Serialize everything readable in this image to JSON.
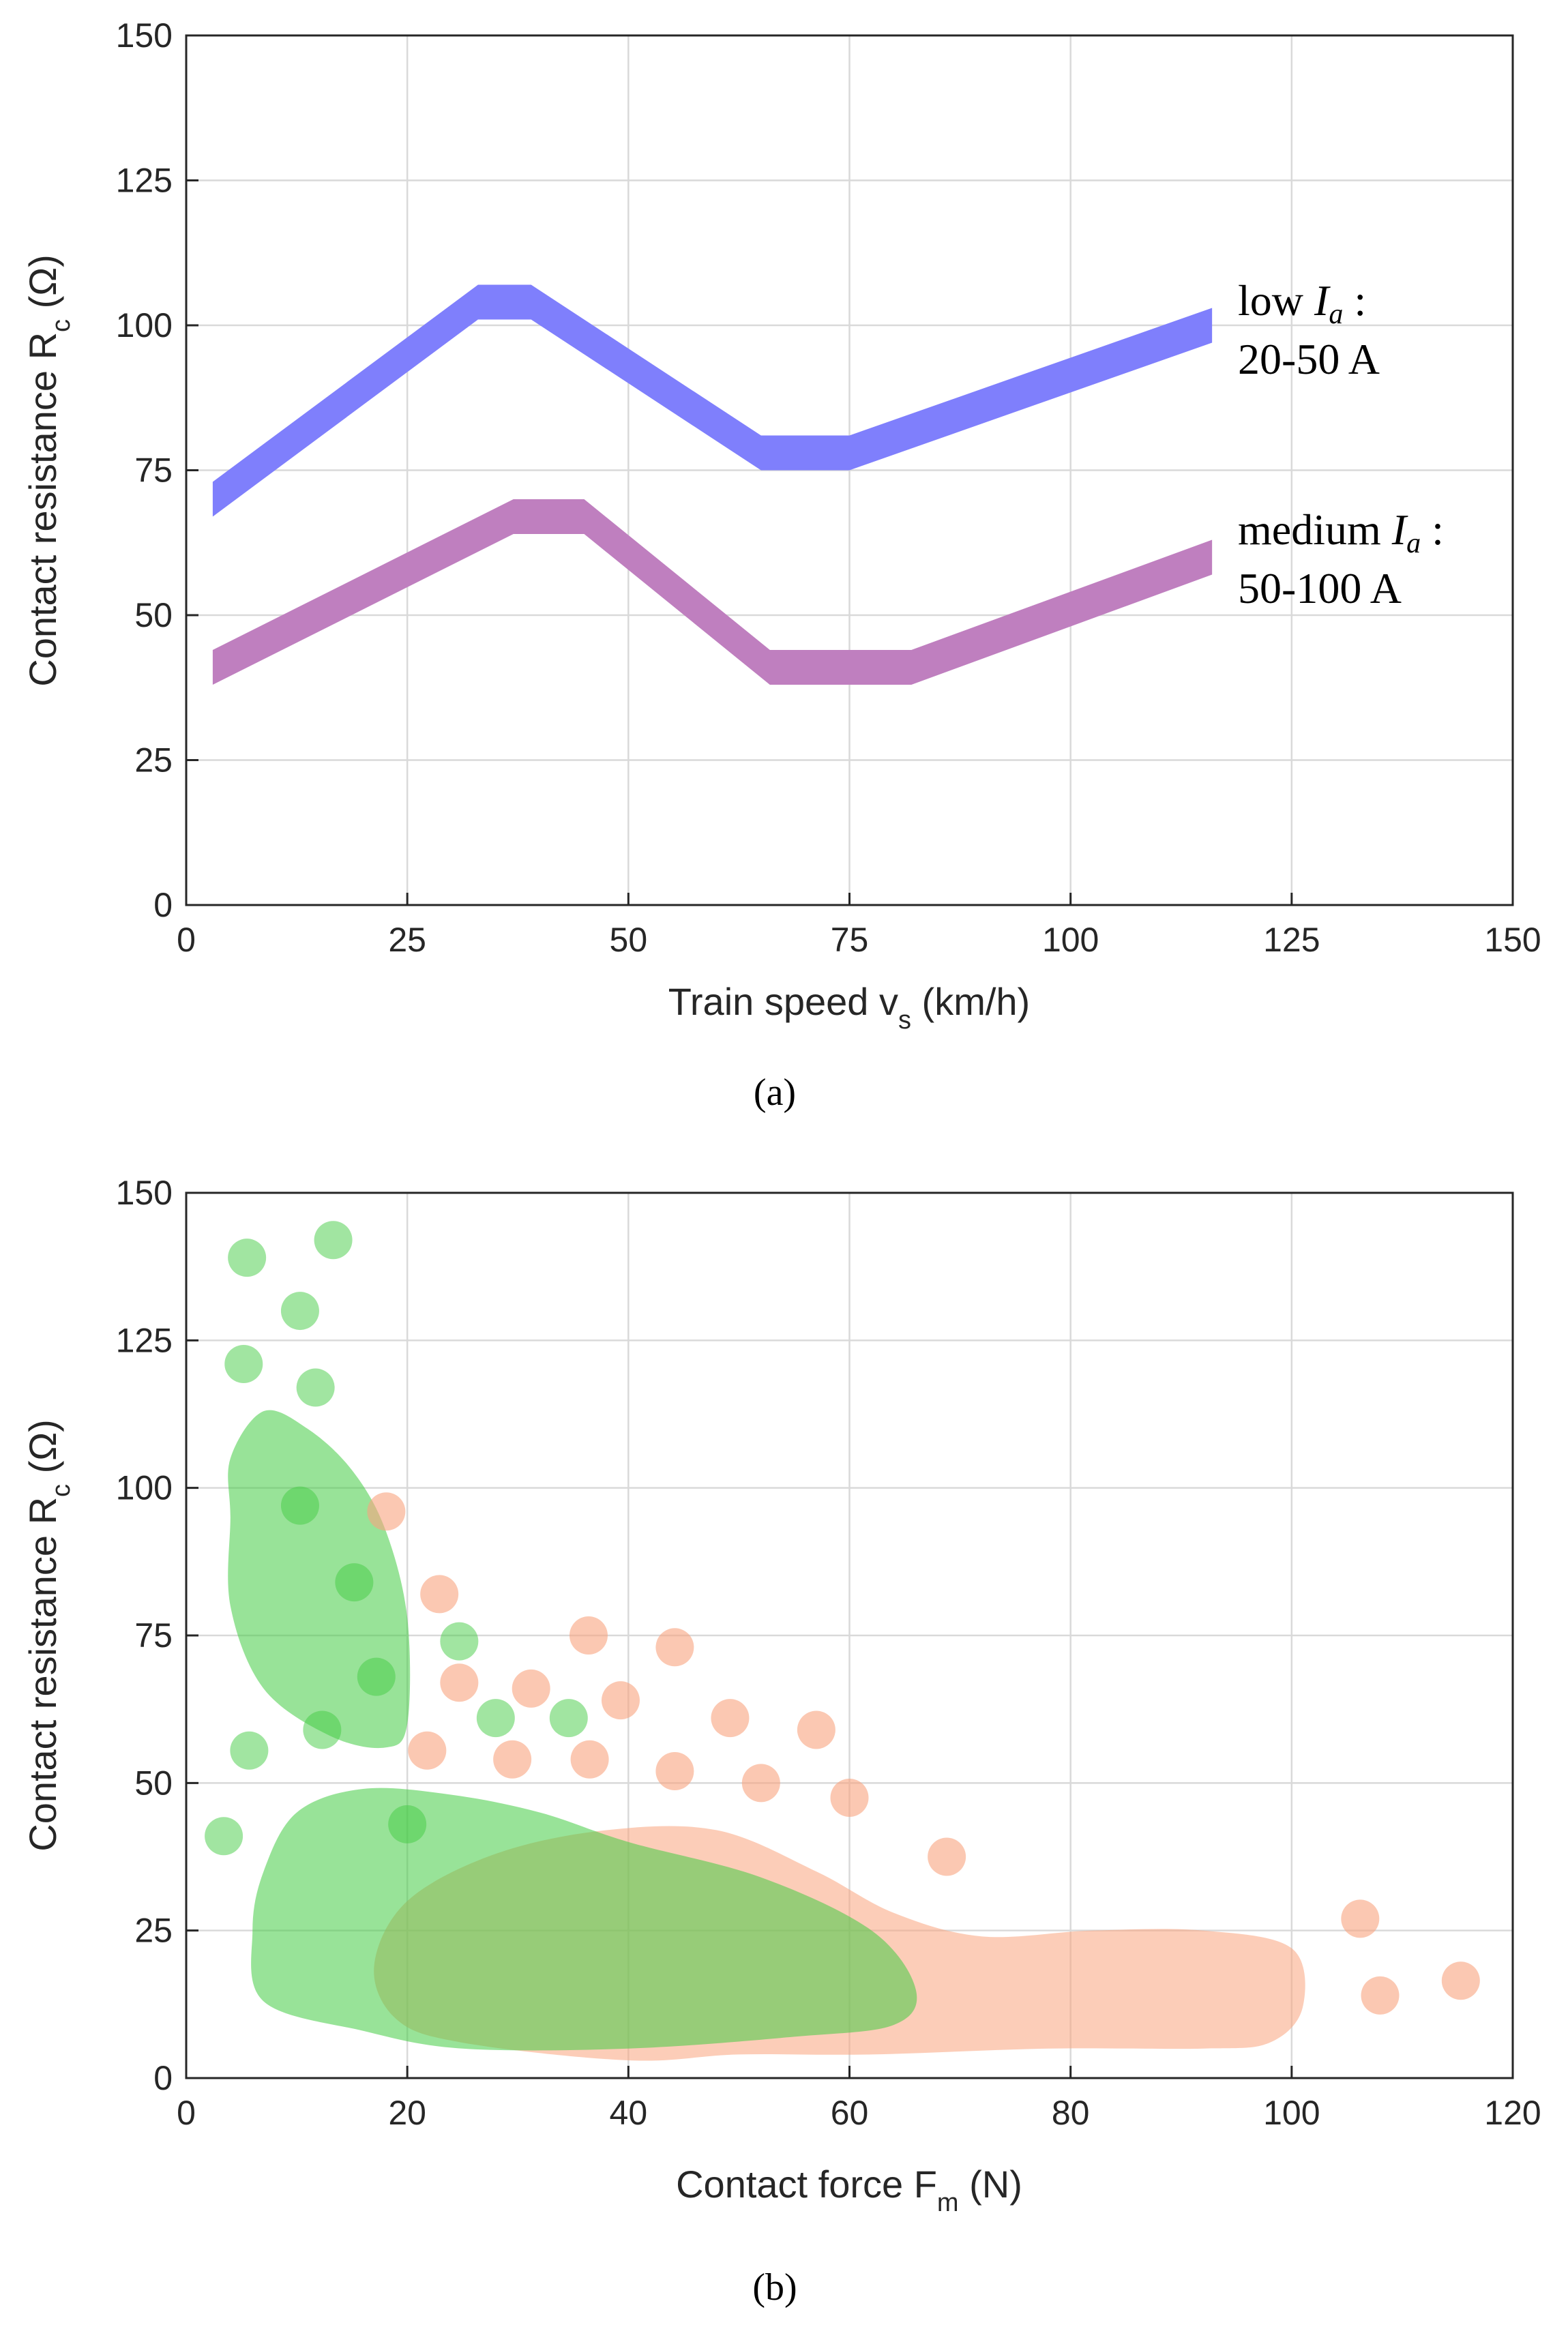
{
  "chart_data": [
    {
      "type": "line",
      "caption": "(a)",
      "xlabel": "Train speed v",
      "xlabel_sub": "s",
      "xlabel_unit": "(km/h)",
      "ylabel": "Contact resistance R",
      "ylabel_sub": "c",
      "ylabel_unit": "(Ω)",
      "xlim": [
        0,
        150
      ],
      "ylim": [
        0,
        150
      ],
      "xticks": [
        "0",
        "25",
        "50",
        "75",
        "100",
        "125",
        "150"
      ],
      "yticks": [
        "0",
        "25",
        "50",
        "75",
        "100",
        "125",
        "150"
      ],
      "grid": true,
      "series": [
        {
          "name": "low Ia",
          "label_line1": "low ",
          "label_var": "I",
          "label_sub": "a",
          "label_colon": " :",
          "label_line2": "20-50 A",
          "color": "#7f7ffc",
          "band_halfwidth": 3,
          "x": [
            3,
            33,
            39,
            65,
            75,
            116
          ],
          "y": [
            70,
            104,
            104,
            78,
            78,
            100
          ]
        },
        {
          "name": "medium Ia",
          "label_line1": "medium ",
          "label_var": "I",
          "label_sub": "a",
          "label_colon": " :",
          "label_line2": "50-100 A",
          "color": "#bf7fbf",
          "band_halfwidth": 3,
          "x": [
            3,
            37,
            45,
            66,
            82,
            116
          ],
          "y": [
            41,
            67,
            67,
            41,
            41,
            60
          ]
        }
      ]
    },
    {
      "type": "scatter",
      "caption": "(b)",
      "xlabel": "Contact force F",
      "xlabel_sub": "m",
      "xlabel_unit": "(N)",
      "ylabel": "Contact resistance R",
      "ylabel_sub": "c",
      "ylabel_unit": "(Ω)",
      "xlim": [
        0,
        120
      ],
      "ylim": [
        0,
        150
      ],
      "xticks": [
        "0",
        "20",
        "40",
        "60",
        "80",
        "100",
        "120"
      ],
      "yticks": [
        "0",
        "25",
        "50",
        "75",
        "100",
        "125",
        "150"
      ],
      "grid": true,
      "regions": [
        {
          "name": "salmon-region-lower",
          "color": "#f9a47e",
          "opacity": 0.55,
          "points": [
            [
              17,
              19
            ],
            [
              20,
              30
            ],
            [
              28,
              38
            ],
            [
              38,
              42
            ],
            [
              48,
              42
            ],
            [
              57,
              35
            ],
            [
              64,
              28
            ],
            [
              72,
              24
            ],
            [
              82,
              25
            ],
            [
              92,
              25
            ],
            [
              100,
              22
            ],
            [
              101,
              12
            ],
            [
              98,
              6
            ],
            [
              92,
              5
            ],
            [
              78,
              5
            ],
            [
              62,
              4
            ],
            [
              50,
              4
            ],
            [
              40,
              3
            ],
            [
              25,
              6
            ],
            [
              19,
              10
            ]
          ]
        },
        {
          "name": "green-region-lower",
          "color": "#44cc44",
          "opacity": 0.55,
          "points": [
            [
              7,
              35
            ],
            [
              10,
              45
            ],
            [
              16,
              49
            ],
            [
              24,
              48
            ],
            [
              32,
              45
            ],
            [
              40,
              40
            ],
            [
              52,
              34
            ],
            [
              62,
              25
            ],
            [
              66,
              15
            ],
            [
              64,
              9
            ],
            [
              55,
              7
            ],
            [
              40,
              5
            ],
            [
              25,
              5
            ],
            [
              16,
              8
            ],
            [
              7,
              13
            ],
            [
              6,
              25
            ]
          ]
        },
        {
          "name": "green-region-upper",
          "color": "#44cc44",
          "opacity": 0.55,
          "points": [
            [
              4,
              105
            ],
            [
              7,
              113
            ],
            [
              11,
              110
            ],
            [
              15,
              103
            ],
            [
              18,
              93
            ],
            [
              20,
              78
            ],
            [
              20,
              60
            ],
            [
              18,
              56
            ],
            [
              13,
              58
            ],
            [
              7,
              66
            ],
            [
              4,
              80
            ],
            [
              4,
              95
            ]
          ]
        }
      ],
      "series": [
        {
          "name": "green points",
          "color": "#44cc44",
          "opacity": 0.5,
          "x": [
            5.5,
            13.3,
            10.3,
            5.2,
            11.7,
            10.3,
            15.2,
            17.2,
            12.3,
            5.7,
            3.4,
            20,
            24.7,
            28,
            34.6
          ],
          "y": [
            139,
            142,
            130,
            121,
            117,
            97,
            84,
            68,
            59,
            55.5,
            41,
            43,
            74,
            61,
            61
          ]
        },
        {
          "name": "salmon points",
          "color": "#f9a47e",
          "opacity": 0.6,
          "x": [
            18.1,
            22.9,
            24.7,
            31.2,
            36.4,
            39.3,
            44.2,
            21.8,
            29.5,
            36.5,
            44.2,
            49.2,
            52,
            57,
            60,
            68.8,
            106.2,
            108,
            115.3
          ],
          "y": [
            96,
            82,
            67,
            66,
            75,
            64,
            73,
            55.5,
            54,
            54,
            52,
            61,
            50,
            59,
            47.5,
            37.5,
            27,
            14,
            16.5
          ]
        }
      ]
    }
  ]
}
